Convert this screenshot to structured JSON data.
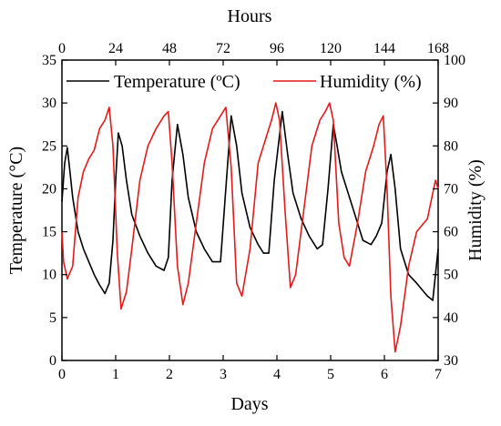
{
  "chart_data": {
    "type": "line",
    "x_bottom": {
      "label": "Days",
      "range": [
        0,
        7
      ],
      "ticks": [
        "0",
        "1",
        "2",
        "3",
        "4",
        "5",
        "6",
        "7"
      ]
    },
    "x_top": {
      "label": "Hours",
      "range": [
        0,
        168
      ],
      "ticks": [
        "0",
        "24",
        "48",
        "72",
        "96",
        "120",
        "144",
        "168"
      ]
    },
    "y_left": {
      "label": "Temperature (°C)",
      "range": [
        0,
        35
      ],
      "ticks": [
        "0",
        "5",
        "10",
        "15",
        "20",
        "25",
        "30",
        "35"
      ]
    },
    "y_right": {
      "label": "Humidity (%)",
      "range": [
        30,
        100
      ],
      "ticks": [
        "30",
        "40",
        "50",
        "60",
        "70",
        "80",
        "90",
        "100"
      ]
    },
    "legend": {
      "placement": "top"
    },
    "series": [
      {
        "name": "Temperature (ºC)",
        "axis": "left",
        "color": "#000000",
        "x": [
          0,
          0.05,
          0.1,
          0.15,
          0.2,
          0.3,
          0.4,
          0.5,
          0.6,
          0.7,
          0.8,
          0.88,
          0.95,
          1.0,
          1.05,
          1.12,
          1.2,
          1.3,
          1.45,
          1.6,
          1.75,
          1.9,
          1.98,
          2.05,
          2.15,
          2.25,
          2.35,
          2.5,
          2.65,
          2.8,
          2.95,
          3.05,
          3.15,
          3.25,
          3.35,
          3.5,
          3.65,
          3.75,
          3.85,
          3.95,
          4.1,
          4.2,
          4.3,
          4.45,
          4.6,
          4.75,
          4.85,
          4.95,
          5.05,
          5.12,
          5.2,
          5.3,
          5.45,
          5.6,
          5.75,
          5.85,
          5.95,
          6.05,
          6.12,
          6.2,
          6.3,
          6.45,
          6.6,
          6.8,
          6.9,
          7.0
        ],
        "y": [
          18.5,
          23,
          24.8,
          22,
          19,
          15,
          13,
          11.5,
          10,
          8.8,
          7.8,
          9,
          14,
          21,
          26.5,
          25,
          21,
          17,
          14.5,
          12.5,
          11,
          10.5,
          12,
          21,
          27.5,
          24,
          19,
          15,
          13,
          11.5,
          11.5,
          20,
          28.5,
          25,
          19.5,
          15.5,
          13.5,
          12.5,
          12.5,
          21,
          29,
          24,
          19.5,
          16.5,
          14.5,
          13,
          13.5,
          20,
          27.5,
          25,
          22,
          20,
          17,
          14,
          13.5,
          14.5,
          16,
          22,
          24,
          20,
          13,
          10,
          9,
          7.5,
          7,
          13
        ]
      },
      {
        "name": "Humidity (%)",
        "axis": "right",
        "color": "#e41a1c",
        "x": [
          0,
          0.03,
          0.1,
          0.2,
          0.3,
          0.4,
          0.5,
          0.6,
          0.7,
          0.8,
          0.88,
          0.95,
          1.03,
          1.1,
          1.2,
          1.3,
          1.45,
          1.6,
          1.75,
          1.9,
          1.98,
          2.05,
          2.15,
          2.25,
          2.35,
          2.5,
          2.65,
          2.8,
          2.95,
          3.05,
          3.15,
          3.25,
          3.35,
          3.5,
          3.65,
          3.8,
          3.9,
          3.98,
          4.05,
          4.15,
          4.25,
          4.35,
          4.5,
          4.65,
          4.8,
          4.9,
          4.98,
          5.05,
          5.15,
          5.25,
          5.35,
          5.5,
          5.65,
          5.8,
          5.9,
          5.98,
          6.05,
          6.12,
          6.2,
          6.3,
          6.45,
          6.6,
          6.8,
          6.95,
          7.0
        ],
        "y": [
          60,
          53,
          49,
          52,
          68,
          74,
          77,
          79,
          84,
          86,
          89,
          80,
          55,
          42,
          46,
          56,
          72,
          80,
          84,
          87,
          88,
          76,
          52,
          43,
          48,
          62,
          76,
          84,
          87,
          89,
          75,
          48,
          45,
          56,
          76,
          82,
          86,
          90,
          86,
          65,
          47,
          50,
          65,
          80,
          86,
          88,
          90,
          86,
          62,
          54,
          52,
          62,
          74,
          80,
          85,
          87,
          70,
          45,
          32,
          38,
          52,
          60,
          63,
          72,
          70
        ]
      }
    ]
  }
}
